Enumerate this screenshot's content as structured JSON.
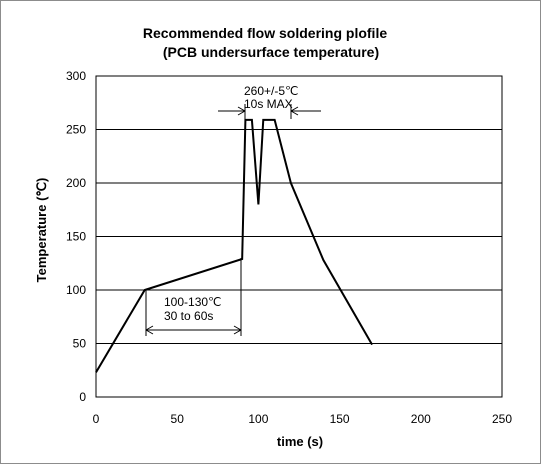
{
  "chart_data": {
    "type": "line",
    "title": "Recommended flow soldering plofile",
    "subtitle": "(PCB undersurface temperature)",
    "xlabel": "time (s)",
    "ylabel": "Temperature (℃)",
    "xlim": [
      0,
      250
    ],
    "ylim": [
      0,
      300
    ],
    "xticks": [
      0,
      50,
      100,
      150,
      200,
      250
    ],
    "yticks": [
      0,
      50,
      100,
      150,
      200,
      250,
      300
    ],
    "grid": "horizontal",
    "legend": "none",
    "series": [
      {
        "color": "#000000",
        "x": [
          0,
          30,
          90,
          92,
          96,
          100,
          103,
          105,
          110,
          120,
          140,
          170
        ],
        "y": [
          23,
          100,
          129,
          259,
          259,
          180,
          259,
          259,
          259,
          200,
          128,
          49
        ]
      }
    ],
    "annotations": [
      {
        "line1": "260+/-5℃",
        "line2": "10s   MAX"
      },
      {
        "line1": "100-130℃",
        "line2": "30 to 60s"
      }
    ]
  }
}
